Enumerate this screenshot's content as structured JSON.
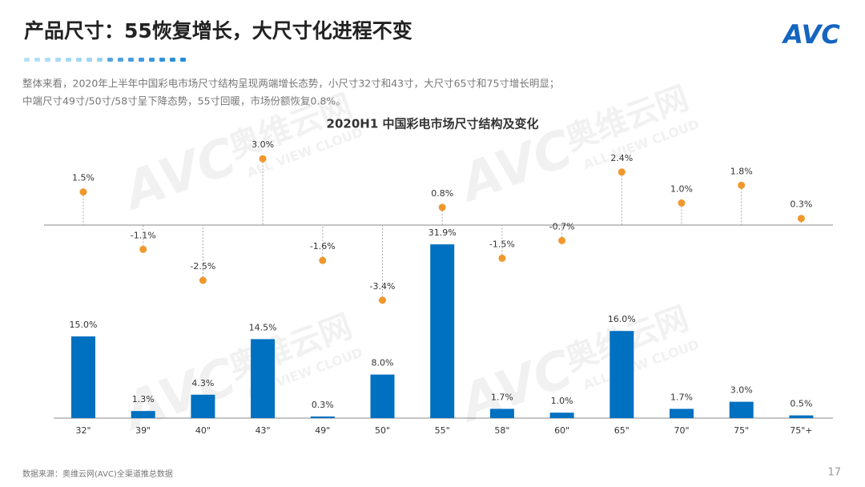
{
  "header": {
    "title": "产品尺寸：55恢复增长，大尺寸化进程不变",
    "logo": "AVC",
    "description": [
      "整体来看，2020年上半年中国彩电市场尺寸结构呈现两端增长态势，小尺寸32寸和43寸，大尺寸65寸和75寸增长明显；",
      "中端尺寸49寸/50寸/58寸呈下降态势，55寸回暖，市场份额恢复0.8%。"
    ]
  },
  "watermark": {
    "brand": "奥维云网",
    "sub": "ALL VIEW CLOUD",
    "logo": "AVC"
  },
  "chart_data": {
    "type": "bar",
    "title": "2020H1 中国彩电市场尺寸结构及变化",
    "categories": [
      "32\"",
      "39\"",
      "40\"",
      "43\"",
      "49\"",
      "50\"",
      "55\"",
      "58\"",
      "60\"",
      "65\"",
      "70\"",
      "75\"",
      "75\"+"
    ],
    "series": [
      {
        "type": "bar",
        "color": "#0070c0",
        "values": [
          15.0,
          1.3,
          4.3,
          14.5,
          0.3,
          8.0,
          31.9,
          1.7,
          1.0,
          16.0,
          1.7,
          3.0,
          0.5
        ],
        "value_labels": [
          "15.0%",
          "1.3%",
          "4.3%",
          "14.5%",
          "0.3%",
          "8.0%",
          "31.9%",
          "1.7%",
          "1.0%",
          "16.0%",
          "1.7%",
          "3.0%",
          "0.5%"
        ]
      },
      {
        "type": "scatter",
        "color": "#f0982c",
        "values": [
          1.5,
          -1.1,
          -2.5,
          3.0,
          -1.6,
          -3.4,
          0.8,
          -1.5,
          -0.7,
          2.4,
          1.0,
          1.8,
          0.3
        ],
        "value_labels": [
          "1.5%",
          "-1.1%",
          "-2.5%",
          "3.0%",
          "-1.6%",
          "-3.4%",
          "0.8%",
          "-1.5%",
          "-0.7%",
          "2.4%",
          "1.0%",
          "1.8%",
          "0.3%"
        ]
      }
    ]
  },
  "footer": {
    "source": "数据来源：奥维云网(AVC)全渠道推总数据",
    "page": "17"
  }
}
